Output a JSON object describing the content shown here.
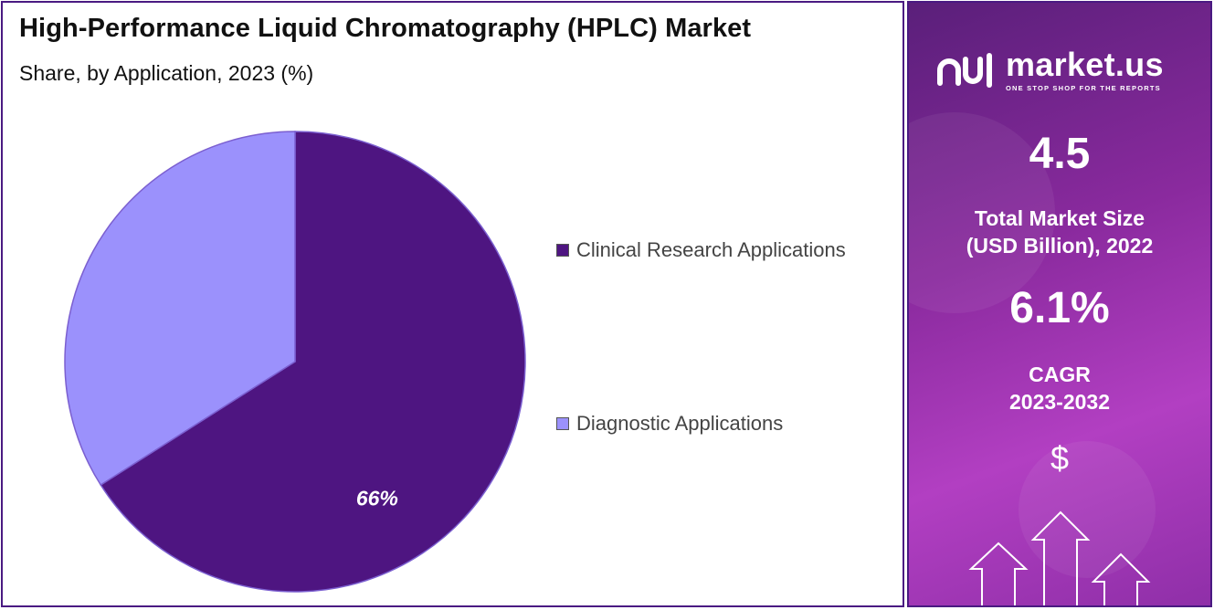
{
  "header": {
    "title": "High-Performance Liquid Chromatography (HPLC) Market",
    "subtitle": "Share, by Application, 2023 (%)"
  },
  "chart_data": {
    "type": "pie",
    "categories": [
      "Clinical Research Applications",
      "Diagnostic Applications"
    ],
    "values": [
      66,
      34
    ],
    "colors": [
      "#4e1581",
      "#9b91fc"
    ],
    "data_labels": [
      "66%",
      ""
    ],
    "legend_position": "right",
    "start_angle_deg": 0,
    "direction": "clockwise"
  },
  "legend": [
    {
      "label": "Clinical Research Applications",
      "color": "#4e1581"
    },
    {
      "label": "Diagnostic Applications",
      "color": "#9b91fc"
    }
  ],
  "side_panel": {
    "brand_name": "market.us",
    "brand_tagline": "ONE STOP SHOP FOR THE REPORTS",
    "market_size_value": "4.5",
    "market_size_label_line1": "Total Market Size",
    "market_size_label_line2": "(USD Billion), 2022",
    "cagr_value": "6.1%",
    "cagr_label_line1": "CAGR",
    "cagr_label_line2": "2023-2032",
    "currency_symbol": "$"
  },
  "icons": [
    "market-us-logo-icon",
    "up-arrow-icon"
  ]
}
